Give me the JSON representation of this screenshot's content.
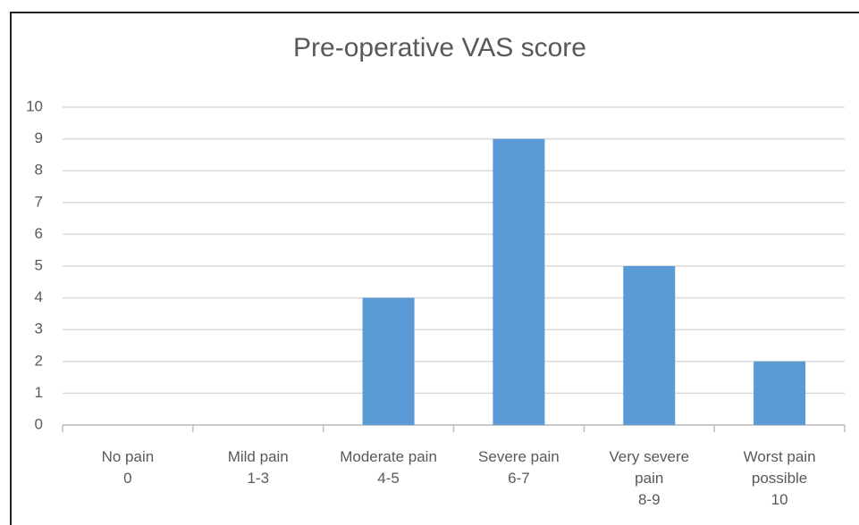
{
  "chart_data": {
    "type": "bar",
    "title": "Pre-operative VAS score",
    "categories": [
      "No pain\n0",
      "Mild pain\n1-3",
      "Moderate pain\n4-5",
      "Severe pain\n6-7",
      "Very severe\npain\n8-9",
      "Worst pain\npossible\n10"
    ],
    "values": [
      0,
      0,
      4,
      9,
      5,
      2
    ],
    "color": "#5b9bd5",
    "ylim": [
      0,
      10
    ],
    "yticks": [
      0,
      1,
      2,
      3,
      4,
      5,
      6,
      7,
      8,
      9,
      10
    ],
    "grid": true
  }
}
